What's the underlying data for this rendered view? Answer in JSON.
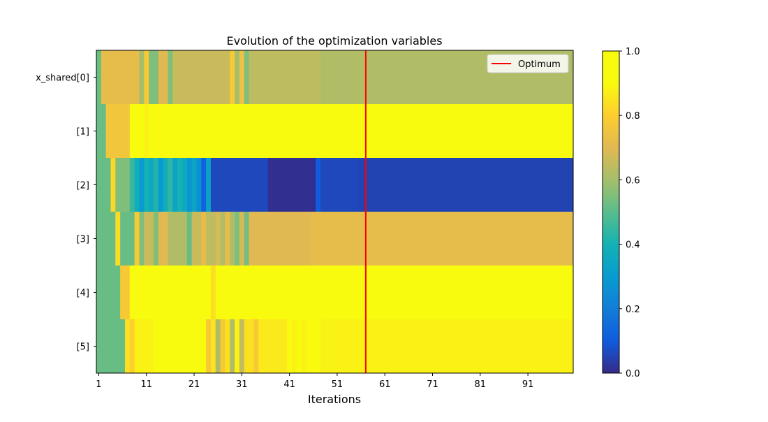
{
  "chart_data": {
    "type": "heatmap",
    "title": "Evolution of the optimization variables",
    "xlabel": "Iterations",
    "ylabel": "",
    "x_ticks": [
      "1",
      "11",
      "21",
      "31",
      "41",
      "51",
      "61",
      "71",
      "81",
      "91"
    ],
    "x_tick_values": [
      1,
      11,
      21,
      31,
      41,
      51,
      61,
      71,
      81,
      91
    ],
    "n_iterations": 100,
    "rows": [
      "x_shared[0]",
      "[1]",
      "[2]",
      "[3]",
      "[4]",
      "[5]"
    ],
    "colorbar": {
      "ticks": [
        "0.0",
        "0.2",
        "0.4",
        "0.6",
        "0.8",
        "1.0"
      ],
      "tick_values": [
        0,
        0.2,
        0.4,
        0.6,
        0.8,
        1.0
      ],
      "range": [
        0,
        1
      ],
      "colormap": "parula"
    },
    "optimum_iteration": 57,
    "legend": {
      "label": "Optimum",
      "color": "#ff0000",
      "position": "top-right"
    },
    "row_profiles": [
      {
        "name": "x_shared[0]",
        "segments": [
          [
            1,
            1,
            0.52
          ],
          [
            2,
            9,
            0.72
          ],
          [
            10,
            10,
            0.6
          ],
          [
            11,
            11,
            0.78
          ],
          [
            12,
            13,
            0.55
          ],
          [
            14,
            15,
            0.7
          ],
          [
            16,
            16,
            0.55
          ],
          [
            17,
            28,
            0.66
          ],
          [
            29,
            29,
            0.78
          ],
          [
            30,
            30,
            0.6
          ],
          [
            31,
            31,
            0.74
          ],
          [
            32,
            32,
            0.55
          ],
          [
            33,
            47,
            0.64
          ],
          [
            48,
            100,
            0.62
          ]
        ]
      },
      {
        "name": "[1]",
        "segments": [
          [
            1,
            2,
            0.52
          ],
          [
            3,
            7,
            0.76
          ],
          [
            8,
            9,
            0.9
          ],
          [
            10,
            10,
            0.98
          ],
          [
            11,
            11,
            0.88
          ],
          [
            12,
            13,
            0.97
          ],
          [
            14,
            14,
            0.9
          ],
          [
            15,
            100,
            1.0
          ]
        ]
      },
      {
        "name": "[2]",
        "segments": [
          [
            1,
            3,
            0.52
          ],
          [
            4,
            4,
            0.82
          ],
          [
            5,
            7,
            0.55
          ],
          [
            8,
            8,
            0.45
          ],
          [
            9,
            9,
            0.38
          ],
          [
            10,
            10,
            0.3
          ],
          [
            11,
            11,
            0.4
          ],
          [
            12,
            12,
            0.36
          ],
          [
            13,
            13,
            0.42
          ],
          [
            14,
            14,
            0.3
          ],
          [
            15,
            15,
            0.38
          ],
          [
            16,
            16,
            0.44
          ],
          [
            17,
            17,
            0.34
          ],
          [
            18,
            18,
            0.4
          ],
          [
            19,
            19,
            0.36
          ],
          [
            20,
            20,
            0.28
          ],
          [
            21,
            21,
            0.34
          ],
          [
            22,
            22,
            0.26
          ],
          [
            23,
            23,
            0.12
          ],
          [
            24,
            24,
            0.33
          ],
          [
            25,
            36,
            0.06
          ],
          [
            37,
            46,
            0.01
          ],
          [
            47,
            47,
            0.1
          ],
          [
            48,
            55,
            0.06
          ],
          [
            56,
            100,
            0.05
          ]
        ]
      },
      {
        "name": "[3]",
        "segments": [
          [
            1,
            4,
            0.52
          ],
          [
            5,
            5,
            0.83
          ],
          [
            6,
            8,
            0.52
          ],
          [
            9,
            9,
            0.78
          ],
          [
            10,
            10,
            0.55
          ],
          [
            11,
            12,
            0.66
          ],
          [
            13,
            13,
            0.55
          ],
          [
            14,
            15,
            0.7
          ],
          [
            16,
            19,
            0.62
          ],
          [
            20,
            20,
            0.52
          ],
          [
            21,
            22,
            0.66
          ],
          [
            23,
            23,
            0.72
          ],
          [
            24,
            25,
            0.64
          ],
          [
            26,
            26,
            0.68
          ],
          [
            27,
            27,
            0.62
          ],
          [
            28,
            28,
            0.72
          ],
          [
            29,
            29,
            0.62
          ],
          [
            30,
            30,
            0.55
          ],
          [
            31,
            31,
            0.68
          ],
          [
            32,
            32,
            0.54
          ],
          [
            33,
            45,
            0.7
          ],
          [
            46,
            100,
            0.72
          ]
        ]
      },
      {
        "name": "[4]",
        "segments": [
          [
            1,
            5,
            0.52
          ],
          [
            6,
            7,
            0.78
          ],
          [
            8,
            8,
            0.92
          ],
          [
            9,
            9,
            1.0
          ],
          [
            10,
            10,
            0.92
          ],
          [
            11,
            20,
            0.98
          ],
          [
            21,
            21,
            0.95
          ],
          [
            22,
            22,
            1.0
          ],
          [
            23,
            23,
            0.9
          ],
          [
            24,
            24,
            1.0
          ],
          [
            25,
            25,
            0.84
          ],
          [
            26,
            27,
            1.0
          ],
          [
            28,
            28,
            0.92
          ],
          [
            29,
            100,
            1.0
          ]
        ]
      },
      {
        "name": "[5]",
        "segments": [
          [
            1,
            6,
            0.52
          ],
          [
            7,
            7,
            0.84
          ],
          [
            8,
            8,
            0.8
          ],
          [
            9,
            12,
            0.88
          ],
          [
            13,
            13,
            0.97
          ],
          [
            14,
            14,
            0.91
          ],
          [
            15,
            15,
            1.0
          ],
          [
            16,
            17,
            0.94
          ],
          [
            18,
            18,
            1.0
          ],
          [
            19,
            19,
            0.92
          ],
          [
            20,
            22,
            0.97
          ],
          [
            23,
            23,
            0.92
          ],
          [
            24,
            24,
            0.78
          ],
          [
            25,
            25,
            0.85
          ],
          [
            26,
            26,
            0.62
          ],
          [
            27,
            27,
            0.78
          ],
          [
            28,
            28,
            0.84
          ],
          [
            29,
            29,
            0.62
          ],
          [
            30,
            30,
            0.88
          ],
          [
            31,
            31,
            0.65
          ],
          [
            32,
            33,
            0.84
          ],
          [
            34,
            34,
            0.78
          ],
          [
            35,
            40,
            0.86
          ],
          [
            41,
            41,
            0.94
          ],
          [
            42,
            42,
            0.88
          ],
          [
            43,
            43,
            0.96
          ],
          [
            44,
            44,
            0.88
          ],
          [
            45,
            45,
            0.96
          ],
          [
            46,
            47,
            0.9
          ],
          [
            48,
            100,
            0.88
          ]
        ]
      }
    ]
  }
}
